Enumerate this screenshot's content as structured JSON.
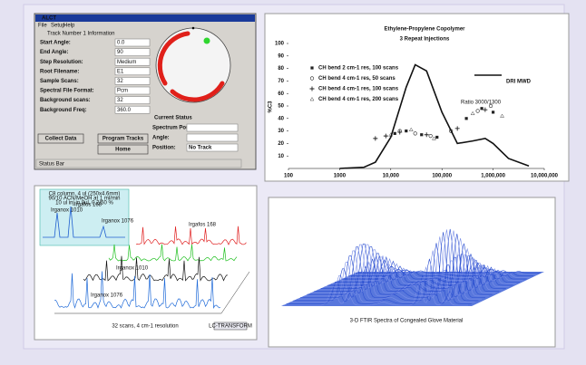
{
  "window": {
    "title": "ALCT",
    "menu": [
      "File",
      "Setup",
      "Help"
    ],
    "section": "Track Number 1 Information",
    "fields": [
      {
        "label": "Start Angle:",
        "value": "0.0"
      },
      {
        "label": "End Angle:",
        "value": "90"
      },
      {
        "label": "Step Resolution:",
        "value": "Medium"
      },
      {
        "label": "Root Filename:",
        "value": "E1"
      },
      {
        "label": "Sample Scans:",
        "value": "32"
      },
      {
        "label": "Spectral File Format:",
        "value": "Pcm"
      },
      {
        "label": "Background scans:",
        "value": "32"
      },
      {
        "label": "Background Freq:",
        "value": "360.0"
      }
    ],
    "status_heading": "Current Status",
    "status_fields": [
      {
        "label": "Spectrum Position:"
      },
      {
        "label": "Angle:"
      },
      {
        "label": "Position:",
        "value": "No Track"
      }
    ],
    "buttons": [
      "Collect Data",
      "Program Tracks",
      "Home"
    ],
    "status_bar": "Status Bar"
  },
  "chart_data": {
    "type": "scatter",
    "title": "Ethylene-Propylene Copolymer",
    "subtitle": "3 Repeat Injections",
    "y_label": "%C3",
    "annotation": "Ratio 3000/1300",
    "xscale": "log",
    "xlim": [
      100,
      10000000
    ],
    "xticks": [
      100,
      1000,
      {
        "value": 10000,
        "label": "10,000"
      },
      {
        "value": 100000,
        "label": "100,000"
      },
      {
        "value": 1000000,
        "label": "1,000,000"
      },
      {
        "value": 10000000,
        "label": "10,000,000"
      }
    ],
    "ylim": [
      0,
      100
    ],
    "yticks": [
      10,
      20,
      30,
      40,
      50,
      60,
      70,
      80,
      90,
      100
    ],
    "series": [
      {
        "name": "CH bend 2 cm-1 res, 100 scans",
        "marker": "square",
        "color": "#222222",
        "x": [
          12000,
          20000,
          40000,
          80000,
          300000,
          600000,
          1000000
        ],
        "values": [
          28,
          30,
          27,
          25,
          40,
          48,
          45
        ]
      },
      {
        "name": "CH bend 4 cm-1 res, 50 scans",
        "marker": "circle",
        "color": "#222222",
        "x": [
          15000,
          30000,
          60000,
          150000,
          500000,
          900000
        ],
        "values": [
          30,
          28,
          26,
          30,
          46,
          50
        ]
      },
      {
        "name": "CH bend 4 cm-1 res, 100 scans",
        "marker": "plus",
        "color": "#222222",
        "x": [
          5000,
          8000,
          15000,
          50000,
          200000,
          700000
        ],
        "values": [
          24,
          26,
          29,
          27,
          32,
          47
        ]
      },
      {
        "name": "CH bend 4 cm-1 res, 200 scans",
        "marker": "triangle",
        "color": "#444444",
        "x": [
          10000,
          25000,
          70000,
          400000,
          1500000
        ],
        "values": [
          27,
          31,
          24,
          44,
          42
        ]
      },
      {
        "name": "DRI MWD",
        "marker": "line",
        "color": "#111111",
        "x": [
          1000,
          3000,
          5000,
          10000,
          20000,
          30000,
          50000,
          100000,
          200000,
          400000,
          700000,
          1000000,
          2000000,
          5000000
        ],
        "values": [
          0,
          1,
          5,
          25,
          65,
          83,
          78,
          45,
          20,
          22,
          24,
          20,
          8,
          2
        ]
      }
    ]
  },
  "spectra_panel": {
    "inset_lines": [
      "C8 column, 4 ul (250x4.6mm)",
      "90/10 ACN/MeOH at 1 ml/min",
      "10 ul inj in 8ul, 0.2/50 %"
    ],
    "inset_labels": [
      "Irganox 1010",
      "Irgafos 168",
      "Irganox 1076"
    ],
    "labels": [
      "Irgafos 168",
      "Irganox 1010",
      "Irganox 1076"
    ],
    "caption": "32 scans, 4 cm-1 resolution",
    "logo": "LC-TRANSFORM"
  },
  "ftir_panel": {
    "caption": "3-D FTIR Spectra of Congealed Glove Material"
  }
}
